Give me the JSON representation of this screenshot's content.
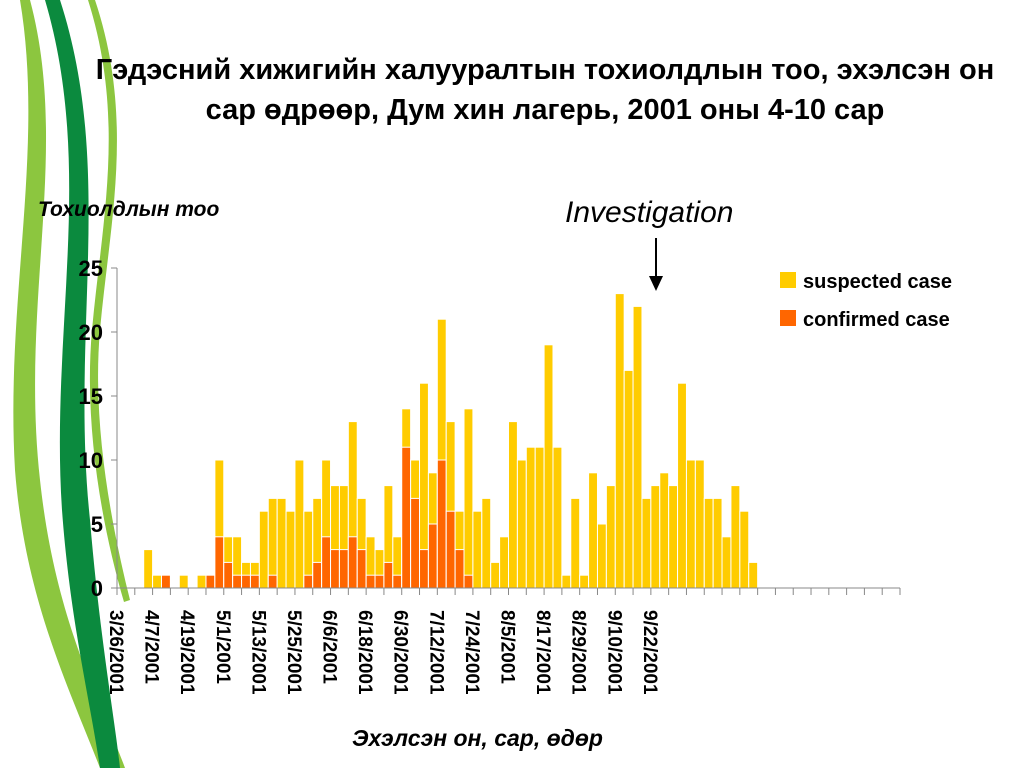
{
  "colors": {
    "suspected": "#FFCC00",
    "confirmed": "#FF6600",
    "green_dark": "#0B8A3E",
    "green_light": "#8CC63F"
  },
  "slide": {
    "title": "Гэдэсний хижигийн халууралтын тохиолдлын тоо, эхэлсэн он сар өдрөөр, Дум хин лагерь, 2001 оны 4-10 сар",
    "annotation": "Investigation"
  },
  "chart_data": {
    "type": "bar",
    "stacked": true,
    "ylabel": "Тохиолдлын тоо",
    "xlabel": "Эхэлсэн он, сар, өдөр",
    "ylim": [
      0,
      25
    ],
    "yticks": [
      0,
      5,
      10,
      15,
      20,
      25
    ],
    "x_start": "3/26/2001",
    "x_step_days": 3,
    "xtick_labels": [
      "3/26/2001",
      "4/7/2001",
      "4/19/2001",
      "5/1/2001",
      "5/13/2001",
      "5/25/2001",
      "6/6/2001",
      "6/18/2001",
      "6/30/2001",
      "7/12/2001",
      "7/24/2001",
      "8/5/2001",
      "8/17/2001",
      "8/29/2001",
      "9/10/2001",
      "9/22/2001"
    ],
    "legend_position": "top-right",
    "series": [
      {
        "name": "suspected case",
        "values": [
          0,
          0,
          0,
          3,
          1,
          0,
          0,
          1,
          0,
          1,
          0,
          6,
          2,
          3,
          1,
          1,
          6,
          6,
          7,
          6,
          10,
          5,
          5,
          6,
          5,
          5,
          9,
          4,
          3,
          2,
          6,
          3,
          3,
          3,
          13,
          4,
          11,
          7,
          3,
          13,
          6,
          7,
          2,
          4,
          13,
          10,
          11,
          11,
          19,
          11,
          1,
          7,
          1,
          9,
          5,
          8,
          23,
          17,
          22,
          7,
          8,
          9,
          8,
          16,
          10,
          10,
          7,
          7,
          4,
          8,
          6,
          2,
          0,
          0,
          0,
          0,
          0,
          0,
          0,
          0,
          0,
          0,
          0,
          0,
          0,
          0,
          0,
          0
        ]
      },
      {
        "name": "confirmed case",
        "values": [
          0,
          0,
          0,
          0,
          0,
          1,
          0,
          0,
          0,
          0,
          1,
          4,
          2,
          1,
          1,
          1,
          0,
          1,
          0,
          0,
          0,
          1,
          2,
          4,
          3,
          3,
          4,
          3,
          1,
          1,
          2,
          1,
          11,
          7,
          3,
          5,
          10,
          6,
          3,
          1,
          0,
          0,
          0,
          0,
          0,
          0,
          0,
          0,
          0,
          0,
          0,
          0,
          0,
          0,
          0,
          0,
          0,
          0,
          0,
          0,
          0,
          0,
          0,
          0,
          0,
          0,
          0,
          0,
          0,
          0,
          0,
          0,
          0,
          0,
          0,
          0,
          0,
          0,
          0,
          0,
          0,
          0,
          0,
          0,
          0,
          0,
          0,
          0
        ]
      }
    ]
  }
}
